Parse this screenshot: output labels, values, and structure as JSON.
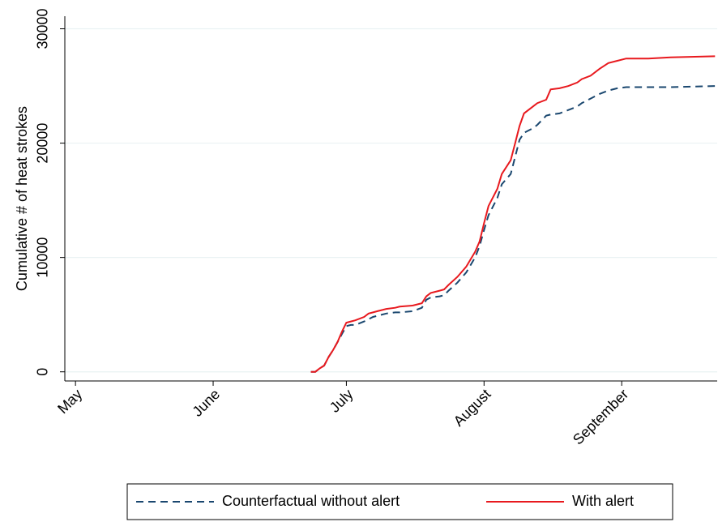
{
  "chart_data": {
    "type": "line",
    "y_label": "Cumulative # of heat strokes",
    "x": [
      53,
      54,
      55,
      56,
      57,
      58,
      59,
      60,
      61,
      62,
      63,
      65,
      66,
      67,
      68,
      70,
      72,
      73,
      76,
      78,
      79,
      80,
      82,
      83,
      84,
      86,
      88,
      90,
      91,
      92,
      93,
      95,
      96,
      98,
      99,
      100,
      101,
      103,
      104,
      106,
      107,
      109,
      111,
      113,
      114,
      116,
      118,
      120,
      122,
      124,
      129,
      134,
      144
    ],
    "xlim": [
      -2.4,
      144.5
    ],
    "xticks": [
      {
        "value": 0,
        "label": "May"
      },
      {
        "value": 31,
        "label": "June"
      },
      {
        "value": 61,
        "label": "July"
      },
      {
        "value": 92,
        "label": "August"
      },
      {
        "value": 123,
        "label": "September"
      }
    ],
    "ylim": [
      -800,
      31100
    ],
    "yticks": [
      0,
      10000,
      20000,
      30000
    ],
    "grid": true,
    "legend": "bottom",
    "series": [
      {
        "name": "Counterfactual without alert",
        "color": "#1a476f",
        "dash": true,
        "values": [
          0,
          0,
          300,
          550,
          1300,
          1900,
          2600,
          3300,
          4000,
          4100,
          4100,
          4400,
          4600,
          4800,
          4900,
          5100,
          5200,
          5200,
          5300,
          5600,
          6300,
          6500,
          6600,
          6700,
          7100,
          7800,
          8700,
          10000,
          11000,
          12400,
          13700,
          15200,
          16400,
          17300,
          18800,
          20300,
          20900,
          21300,
          21600,
          22400,
          22500,
          22600,
          22900,
          23200,
          23500,
          23900,
          24300,
          24600,
          24800,
          24900,
          24900,
          24900,
          25000
        ]
      },
      {
        "name": "With alert",
        "color": "#e8191e",
        "dash": false,
        "values": [
          0,
          0,
          300,
          550,
          1300,
          1900,
          2600,
          3500,
          4300,
          4400,
          4500,
          4800,
          5100,
          5200,
          5300,
          5500,
          5600,
          5700,
          5800,
          6000,
          6600,
          6900,
          7100,
          7200,
          7600,
          8300,
          9200,
          10500,
          11400,
          13000,
          14500,
          16000,
          17300,
          18500,
          20000,
          21500,
          22600,
          23200,
          23500,
          23800,
          24700,
          24800,
          25000,
          25300,
          25600,
          25900,
          26500,
          27000,
          27200,
          27400,
          27400,
          27500,
          27600
        ]
      }
    ]
  }
}
